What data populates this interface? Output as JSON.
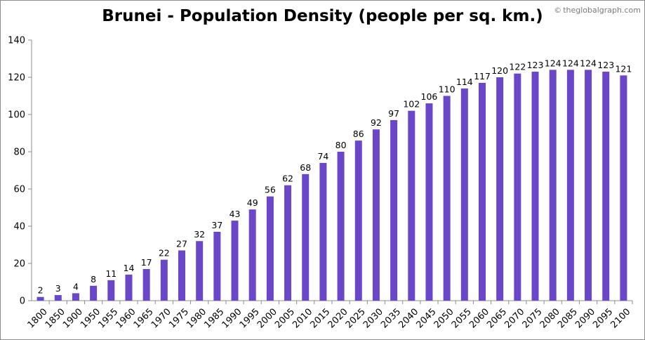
{
  "title": "Brunei - Population Density (people per sq. km.)",
  "watermark": "theglobalgraph.com",
  "watermark_symbol": "©",
  "colors": {
    "bar": "#6a47c9",
    "axis": "#8c8c8c",
    "frame": "#8c8c8c",
    "background": "#ffffff"
  },
  "chart_data": {
    "type": "bar",
    "title": "Brunei - Population Density (people per sq. km.)",
    "xlabel": "",
    "ylabel": "",
    "ylim": [
      0,
      140
    ],
    "yticks": [
      0,
      20,
      40,
      60,
      80,
      100,
      120,
      140
    ],
    "grid": false,
    "legend": "none",
    "categories": [
      "1800",
      "1850",
      "1900",
      "1950",
      "1955",
      "1960",
      "1965",
      "1970",
      "1975",
      "1980",
      "1985",
      "1990",
      "1995",
      "2000",
      "2005",
      "2010",
      "2015",
      "2020",
      "2025",
      "2030",
      "2035",
      "2040",
      "2045",
      "2050",
      "2055",
      "2060",
      "2065",
      "2070",
      "2075",
      "2080",
      "2085",
      "2090",
      "2095",
      "2100"
    ],
    "values": [
      2,
      3,
      4,
      8,
      11,
      14,
      17,
      22,
      27,
      32,
      37,
      43,
      49,
      56,
      62,
      68,
      74,
      80,
      86,
      92,
      97,
      102,
      106,
      110,
      114,
      117,
      120,
      122,
      123,
      124,
      124,
      124,
      123,
      121
    ]
  }
}
